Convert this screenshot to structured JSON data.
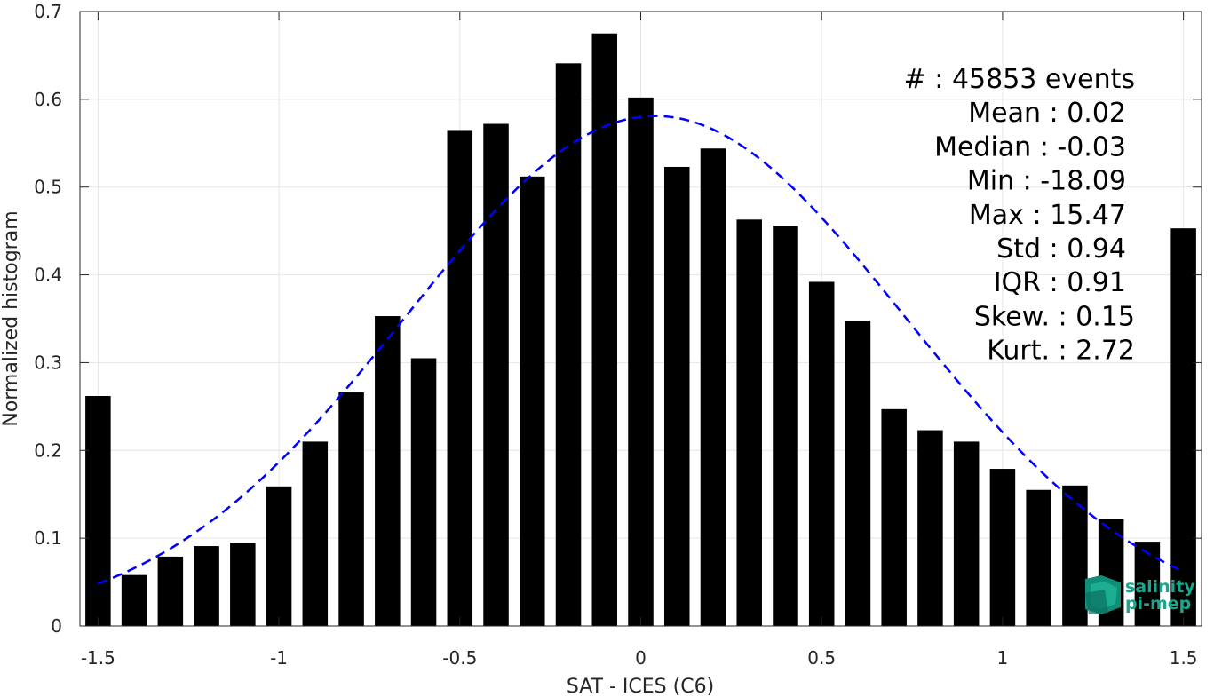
{
  "chart_data": {
    "type": "bar",
    "xlabel": "SAT - ICES (C6)",
    "ylabel": "Normalized histogram",
    "xlim": [
      -1.55,
      1.55
    ],
    "ylim": [
      0,
      0.7
    ],
    "grid": true,
    "x_ticks": [
      -1.5,
      -1,
      -0.5,
      0,
      0.5,
      1,
      1.5
    ],
    "x_tick_labels": [
      "-1.5",
      "-1",
      "-0.5",
      "0",
      "0.5",
      "1",
      "1.5"
    ],
    "y_ticks": [
      0,
      0.1,
      0.2,
      0.3,
      0.4,
      0.5,
      0.6,
      0.7
    ],
    "y_tick_labels": [
      "0",
      "0.1",
      "0.2",
      "0.3",
      "0.4",
      "0.5",
      "0.6",
      "0.7"
    ],
    "bar_color": "#000000",
    "bins": [
      -1.5,
      -1.4,
      -1.3,
      -1.2,
      -1.1,
      -1.0,
      -0.9,
      -0.8,
      -0.7,
      -0.6,
      -0.5,
      -0.4,
      -0.3,
      -0.2,
      -0.1,
      0.0,
      0.1,
      0.2,
      0.3,
      0.4,
      0.5,
      0.6,
      0.7,
      0.8,
      0.9,
      1.0,
      1.1,
      1.2,
      1.3,
      1.4,
      1.5
    ],
    "values": [
      0.262,
      0.058,
      0.079,
      0.091,
      0.095,
      0.159,
      0.21,
      0.266,
      0.353,
      0.305,
      0.565,
      0.572,
      0.512,
      0.641,
      0.675,
      0.602,
      0.523,
      0.544,
      0.463,
      0.456,
      0.392,
      0.348,
      0.247,
      0.223,
      0.21,
      0.179,
      0.155,
      0.16,
      0.122,
      0.096,
      0.453
    ],
    "fit_curve": {
      "type": "gaussian",
      "style": "dashed",
      "color": "#0000ff",
      "mean": 0.04,
      "std": 0.69,
      "peak": 0.581,
      "x_range": [
        -1.5,
        1.5
      ]
    },
    "stats": [
      {
        "label": "#  : 45853 events"
      },
      {
        "label": "Mean : 0.02"
      },
      {
        "label": "Median : -0.03"
      },
      {
        "label": "Min : -18.09"
      },
      {
        "label": "Max : 15.47"
      },
      {
        "label": "Std : 0.94"
      },
      {
        "label": "IQR : 0.91"
      },
      {
        "label": "Skew. : 0.15"
      },
      {
        "label": "Kurt. : 2.72"
      }
    ]
  },
  "logo": {
    "line1": "salinity",
    "line2": "pi-mep",
    "color": "#1aa58c"
  }
}
